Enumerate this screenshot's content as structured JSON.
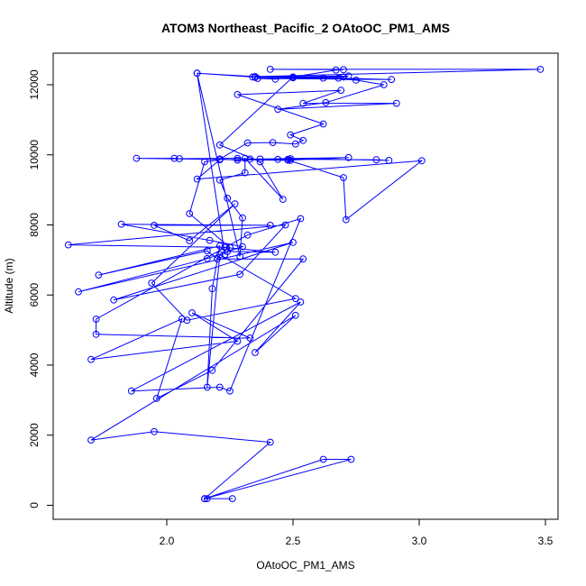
{
  "chart_data": {
    "type": "line",
    "title": "ATOM3 Northeast_Pacific_2 OAtoOC_PM1_AMS",
    "xlabel": "OAtoOC_PM1_AMS",
    "ylabel": "Altitude (m)",
    "xlim": [
      1.55,
      3.55
    ],
    "ylim": [
      -400,
      12900
    ],
    "xticks": [
      2.0,
      2.5,
      3.0,
      3.5
    ],
    "xtick_labels": [
      "2.0",
      "2.5",
      "3.0",
      "3.5"
    ],
    "yticks": [
      0,
      2000,
      4000,
      6000,
      8000,
      10000,
      12000
    ],
    "ytick_labels": [
      "0",
      "2000",
      "4000",
      "6000",
      "8000",
      "10000",
      "12000"
    ],
    "grid": false,
    "series": [
      {
        "color": "#0000ff",
        "marker": "open-circle",
        "points": [
          [
            2.26,
            190
          ],
          [
            2.16,
            190
          ],
          [
            2.15,
            190
          ],
          [
            2.62,
            1310
          ],
          [
            2.73,
            1310
          ],
          [
            2.15,
            190
          ],
          [
            2.41,
            1800
          ],
          [
            1.95,
            2100
          ],
          [
            1.7,
            1860
          ],
          [
            2.51,
            5420
          ],
          [
            2.35,
            4360
          ],
          [
            2.53,
            5800
          ],
          [
            1.86,
            3260
          ],
          [
            2.21,
            3370
          ],
          [
            2.25,
            3260
          ],
          [
            2.53,
            8180
          ],
          [
            2.32,
            7710
          ],
          [
            1.72,
            5310
          ],
          [
            1.72,
            4880
          ],
          [
            2.33,
            4770
          ],
          [
            2.1,
            5490
          ],
          [
            2.28,
            4680
          ],
          [
            1.7,
            4160
          ],
          [
            2.06,
            5320
          ],
          [
            1.96,
            3050
          ],
          [
            2.18,
            3850
          ],
          [
            2.54,
            7030
          ],
          [
            2.2,
            7030
          ],
          [
            2.16,
            7260
          ],
          [
            1.73,
            6570
          ],
          [
            2.21,
            7400
          ],
          [
            2.18,
            6180
          ],
          [
            2.16,
            3370
          ],
          [
            2.21,
            7150
          ],
          [
            2.51,
            5900
          ],
          [
            2.08,
            5280
          ],
          [
            1.94,
            6340
          ],
          [
            2.27,
            8600
          ],
          [
            2.09,
            7550
          ],
          [
            1.95,
            7990
          ],
          [
            2.41,
            7990
          ],
          [
            1.82,
            8020
          ],
          [
            2.17,
            7560
          ],
          [
            2.3,
            7380
          ],
          [
            2.16,
            7040
          ],
          [
            1.65,
            6090
          ],
          [
            2.5,
            7500
          ],
          [
            1.79,
            5860
          ],
          [
            2.29,
            6590
          ],
          [
            2.47,
            8000
          ],
          [
            1.61,
            7430
          ],
          [
            2.23,
            7360
          ],
          [
            2.43,
            7220
          ],
          [
            2.24,
            7240
          ],
          [
            2.25,
            7360
          ],
          [
            2.09,
            8320
          ],
          [
            2.15,
            9800
          ],
          [
            2.21,
            9860
          ],
          [
            2.12,
            9310
          ],
          [
            3.01,
            9830
          ],
          [
            2.71,
            8150
          ],
          [
            2.7,
            9350
          ],
          [
            2.48,
            9850
          ],
          [
            2.72,
            9920
          ],
          [
            2.37,
            9880
          ],
          [
            2.83,
            9860
          ],
          [
            2.88,
            9840
          ],
          [
            2.49,
            9890
          ],
          [
            2.44,
            9870
          ],
          [
            2.33,
            9880
          ],
          [
            2.28,
            9900
          ],
          [
            2.05,
            9890
          ],
          [
            2.03,
            9900
          ],
          [
            1.88,
            9900
          ],
          [
            2.49,
            9840
          ],
          [
            2.48,
            9870
          ],
          [
            2.28,
            9850
          ],
          [
            2.21,
            9880
          ],
          [
            2.32,
            10340
          ],
          [
            2.42,
            10350
          ],
          [
            2.51,
            10310
          ],
          [
            2.54,
            10410
          ],
          [
            2.49,
            10570
          ],
          [
            2.62,
            10880
          ],
          [
            2.28,
            11720
          ],
          [
            2.69,
            11840
          ],
          [
            2.54,
            11470
          ],
          [
            2.91,
            11470
          ],
          [
            2.44,
            11300
          ],
          [
            2.63,
            11490
          ],
          [
            2.86,
            12000
          ],
          [
            2.75,
            12130
          ],
          [
            2.62,
            12190
          ],
          [
            2.5,
            12200
          ],
          [
            2.43,
            12160
          ],
          [
            2.36,
            12180
          ],
          [
            2.89,
            12150
          ],
          [
            2.68,
            12190
          ],
          [
            2.35,
            12210
          ],
          [
            2.7,
            12220
          ],
          [
            2.72,
            12250
          ],
          [
            2.34,
            12220
          ],
          [
            2.12,
            12330
          ],
          [
            2.35,
            12230
          ],
          [
            3.48,
            12440
          ],
          [
            2.41,
            12440
          ],
          [
            2.7,
            12430
          ],
          [
            2.67,
            12420
          ],
          [
            2.5,
            12220
          ],
          [
            2.21,
            10280
          ],
          [
            2.37,
            9800
          ],
          [
            2.46,
            8730
          ],
          [
            2.31,
            9900
          ],
          [
            2.31,
            9490
          ],
          [
            2.21,
            9280
          ],
          [
            2.24,
            8760
          ],
          [
            2.3,
            8200
          ],
          [
            2.29,
            7100
          ],
          [
            2.12,
            12330
          ],
          [
            2.23,
            7150
          ]
        ]
      }
    ]
  }
}
